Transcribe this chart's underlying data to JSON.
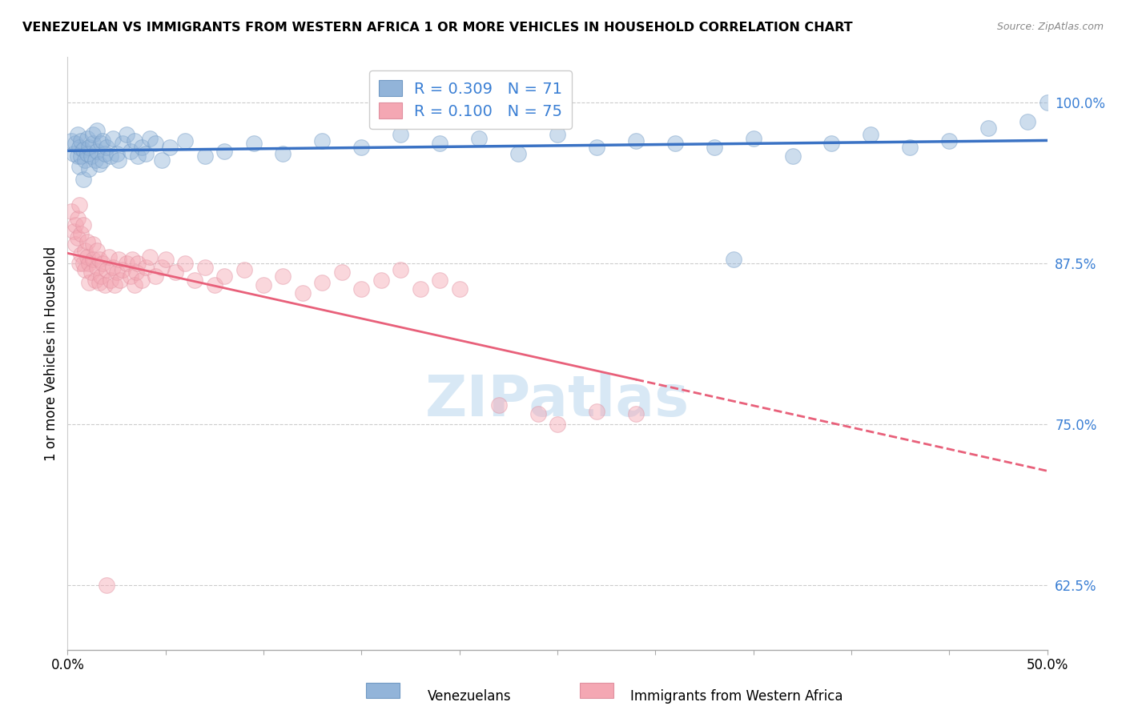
{
  "title": "VENEZUELAN VS IMMIGRANTS FROM WESTERN AFRICA 1 OR MORE VEHICLES IN HOUSEHOLD CORRELATION CHART",
  "source": "Source: ZipAtlas.com",
  "ylabel": "1 or more Vehicles in Household",
  "ytick_labels": [
    "100.0%",
    "87.5%",
    "75.0%",
    "62.5%"
  ],
  "ytick_values": [
    1.0,
    0.875,
    0.75,
    0.625
  ],
  "xtick_labels": [
    "0.0%",
    "",
    "",
    "",
    "",
    "",
    "",
    "",
    "",
    "",
    "50.0%"
  ],
  "xlim": [
    0.0,
    0.5
  ],
  "ylim": [
    0.575,
    1.035
  ],
  "legend_blue_label_r": "R = 0.309",
  "legend_blue_label_n": "N = 71",
  "legend_pink_label_r": "R = 0.100",
  "legend_pink_label_n": "N = 75",
  "footer_blue": "Venezuelans",
  "footer_pink": "Immigrants from Western Africa",
  "blue_color": "#92B4D9",
  "pink_color": "#F4A7B3",
  "blue_line_color": "#3A72C4",
  "pink_line_color": "#E8607A",
  "watermark_text": "ZIPatlas",
  "watermark_color": "#D8E8F5",
  "blue_scatter": [
    [
      0.002,
      0.97
    ],
    [
      0.003,
      0.96
    ],
    [
      0.004,
      0.968
    ],
    [
      0.005,
      0.958
    ],
    [
      0.005,
      0.975
    ],
    [
      0.006,
      0.95
    ],
    [
      0.006,
      0.965
    ],
    [
      0.007,
      0.958
    ],
    [
      0.007,
      0.97
    ],
    [
      0.008,
      0.963
    ],
    [
      0.008,
      0.94
    ],
    [
      0.009,
      0.955
    ],
    [
      0.01,
      0.96
    ],
    [
      0.01,
      0.972
    ],
    [
      0.011,
      0.948
    ],
    [
      0.011,
      0.965
    ],
    [
      0.012,
      0.958
    ],
    [
      0.013,
      0.968
    ],
    [
      0.013,
      0.975
    ],
    [
      0.014,
      0.955
    ],
    [
      0.015,
      0.962
    ],
    [
      0.015,
      0.978
    ],
    [
      0.016,
      0.952
    ],
    [
      0.017,
      0.968
    ],
    [
      0.018,
      0.955
    ],
    [
      0.018,
      0.97
    ],
    [
      0.019,
      0.96
    ],
    [
      0.02,
      0.965
    ],
    [
      0.022,
      0.958
    ],
    [
      0.023,
      0.972
    ],
    [
      0.025,
      0.96
    ],
    [
      0.026,
      0.955
    ],
    [
      0.028,
      0.968
    ],
    [
      0.03,
      0.975
    ],
    [
      0.032,
      0.962
    ],
    [
      0.034,
      0.97
    ],
    [
      0.036,
      0.958
    ],
    [
      0.038,
      0.965
    ],
    [
      0.04,
      0.96
    ],
    [
      0.042,
      0.972
    ],
    [
      0.045,
      0.968
    ],
    [
      0.048,
      0.955
    ],
    [
      0.052,
      0.965
    ],
    [
      0.06,
      0.97
    ],
    [
      0.07,
      0.958
    ],
    [
      0.08,
      0.962
    ],
    [
      0.095,
      0.968
    ],
    [
      0.11,
      0.96
    ],
    [
      0.13,
      0.97
    ],
    [
      0.15,
      0.965
    ],
    [
      0.17,
      0.975
    ],
    [
      0.19,
      0.968
    ],
    [
      0.21,
      0.972
    ],
    [
      0.23,
      0.96
    ],
    [
      0.25,
      0.975
    ],
    [
      0.27,
      0.965
    ],
    [
      0.29,
      0.97
    ],
    [
      0.31,
      0.968
    ],
    [
      0.33,
      0.965
    ],
    [
      0.35,
      0.972
    ],
    [
      0.37,
      0.958
    ],
    [
      0.39,
      0.968
    ],
    [
      0.41,
      0.975
    ],
    [
      0.43,
      0.965
    ],
    [
      0.45,
      0.97
    ],
    [
      0.47,
      0.98
    ],
    [
      0.49,
      0.985
    ],
    [
      0.34,
      0.878
    ],
    [
      0.5,
      1.0
    ]
  ],
  "pink_scatter": [
    [
      0.002,
      0.915
    ],
    [
      0.003,
      0.9
    ],
    [
      0.004,
      0.905
    ],
    [
      0.004,
      0.89
    ],
    [
      0.005,
      0.91
    ],
    [
      0.005,
      0.895
    ],
    [
      0.006,
      0.875
    ],
    [
      0.006,
      0.92
    ],
    [
      0.007,
      0.882
    ],
    [
      0.007,
      0.898
    ],
    [
      0.008,
      0.875
    ],
    [
      0.008,
      0.905
    ],
    [
      0.009,
      0.885
    ],
    [
      0.009,
      0.87
    ],
    [
      0.01,
      0.88
    ],
    [
      0.01,
      0.892
    ],
    [
      0.011,
      0.86
    ],
    [
      0.011,
      0.875
    ],
    [
      0.012,
      0.868
    ],
    [
      0.013,
      0.878
    ],
    [
      0.013,
      0.89
    ],
    [
      0.014,
      0.862
    ],
    [
      0.015,
      0.872
    ],
    [
      0.015,
      0.885
    ],
    [
      0.016,
      0.86
    ],
    [
      0.016,
      0.878
    ],
    [
      0.017,
      0.865
    ],
    [
      0.018,
      0.875
    ],
    [
      0.019,
      0.858
    ],
    [
      0.02,
      0.87
    ],
    [
      0.021,
      0.88
    ],
    [
      0.022,
      0.862
    ],
    [
      0.023,
      0.872
    ],
    [
      0.024,
      0.858
    ],
    [
      0.025,
      0.868
    ],
    [
      0.026,
      0.878
    ],
    [
      0.027,
      0.862
    ],
    [
      0.028,
      0.87
    ],
    [
      0.03,
      0.875
    ],
    [
      0.032,
      0.865
    ],
    [
      0.033,
      0.878
    ],
    [
      0.034,
      0.858
    ],
    [
      0.035,
      0.868
    ],
    [
      0.036,
      0.875
    ],
    [
      0.038,
      0.862
    ],
    [
      0.04,
      0.872
    ],
    [
      0.042,
      0.88
    ],
    [
      0.045,
      0.865
    ],
    [
      0.048,
      0.872
    ],
    [
      0.05,
      0.878
    ],
    [
      0.055,
      0.868
    ],
    [
      0.06,
      0.875
    ],
    [
      0.065,
      0.862
    ],
    [
      0.07,
      0.872
    ],
    [
      0.075,
      0.858
    ],
    [
      0.08,
      0.865
    ],
    [
      0.09,
      0.87
    ],
    [
      0.1,
      0.858
    ],
    [
      0.11,
      0.865
    ],
    [
      0.12,
      0.852
    ],
    [
      0.13,
      0.86
    ],
    [
      0.14,
      0.868
    ],
    [
      0.15,
      0.855
    ],
    [
      0.16,
      0.862
    ],
    [
      0.17,
      0.87
    ],
    [
      0.18,
      0.855
    ],
    [
      0.19,
      0.862
    ],
    [
      0.2,
      0.855
    ],
    [
      0.22,
      0.765
    ],
    [
      0.24,
      0.758
    ],
    [
      0.25,
      0.75
    ],
    [
      0.27,
      0.76
    ],
    [
      0.29,
      0.758
    ],
    [
      0.02,
      0.625
    ]
  ]
}
